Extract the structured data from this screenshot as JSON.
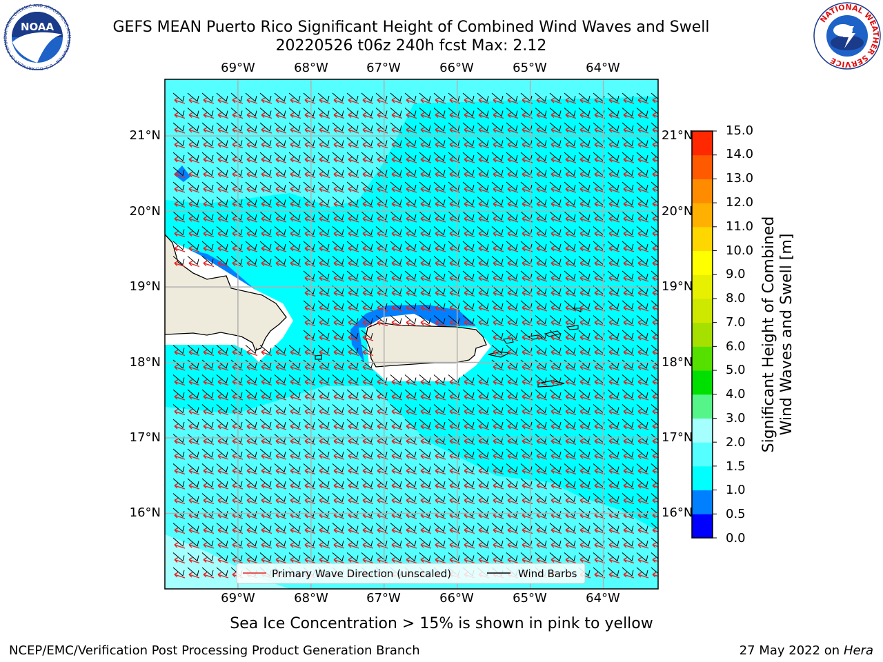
{
  "title": {
    "line1": "GEFS MEAN Puerto Rico Significant Height of Combined Wind Waves and Swell",
    "line2": "20220526 t06z 240h fcst   Max: 2.12"
  },
  "logos": {
    "noaa_text": "NOAA",
    "noaa_ring": "NATIONAL OCEANIC AND ATMOSPHERIC ADMINISTRATION · U.S. DEPARTMENT OF COMMERCE",
    "nws_ring": "NATIONAL WEATHER SERVICE"
  },
  "map": {
    "lon_labels": [
      "69°W",
      "68°W",
      "67°W",
      "66°W",
      "65°W",
      "64°W"
    ],
    "lat_labels": [
      "21°N",
      "20°N",
      "19°N",
      "18°N",
      "17°N",
      "16°N"
    ],
    "lon_values": [
      -69,
      -68,
      -67,
      -66,
      -65,
      -64
    ],
    "lat_values": [
      21,
      20,
      19,
      18,
      17,
      16
    ],
    "extent": {
      "lon_min": -70.0,
      "lon_max": -63.25,
      "lat_min": 15.0,
      "lat_max": 21.75
    },
    "legend": {
      "wave_direction": "Primary Wave Direction (unscaled)",
      "wind_barbs": "Wind Barbs"
    },
    "colors": {
      "sea_main": "#00ffff",
      "sea_2_to_3": "#66fbff",
      "sea_light": "#a6ffff",
      "near_coast_blue": "#0080ff",
      "land": "#efebdc",
      "arrow": "#e82020",
      "grid": "#b0b0b0"
    }
  },
  "colorbar": {
    "label_line1": "Significant Height of Combined",
    "label_line2": "Wind Waves and Swell [m]",
    "ticks": [
      "15.0",
      "14.0",
      "13.0",
      "12.0",
      "11.0",
      "10.0",
      "9.0",
      "8.0",
      "7.0",
      "6.0",
      "5.0",
      "4.0",
      "3.0",
      "2.0",
      "1.5",
      "1.0",
      "0.5",
      "0.0"
    ],
    "levels": [
      0.0,
      0.5,
      1.0,
      1.5,
      2.0,
      3.0,
      4.0,
      5.0,
      6.0,
      7.0,
      8.0,
      9.0,
      10.0,
      11.0,
      12.0,
      13.0,
      14.0,
      15.0
    ],
    "colors": [
      "#0000ff",
      "#0080ff",
      "#00ffff",
      "#55ffff",
      "#a6ffff",
      "#55f58a",
      "#00e000",
      "#55e000",
      "#a6e000",
      "#cfe800",
      "#e6f000",
      "#ffff00",
      "#ffd700",
      "#ffb000",
      "#ff8c00",
      "#ff5a00",
      "#ff2800"
    ]
  },
  "note": "Sea Ice Concentration > 15% is shown in pink to yellow",
  "footer": {
    "left": "NCEP/EMC/Verification Post Processing Product Generation Branch",
    "right_date": "27 May 2022 on",
    "right_machine": "Hera"
  }
}
